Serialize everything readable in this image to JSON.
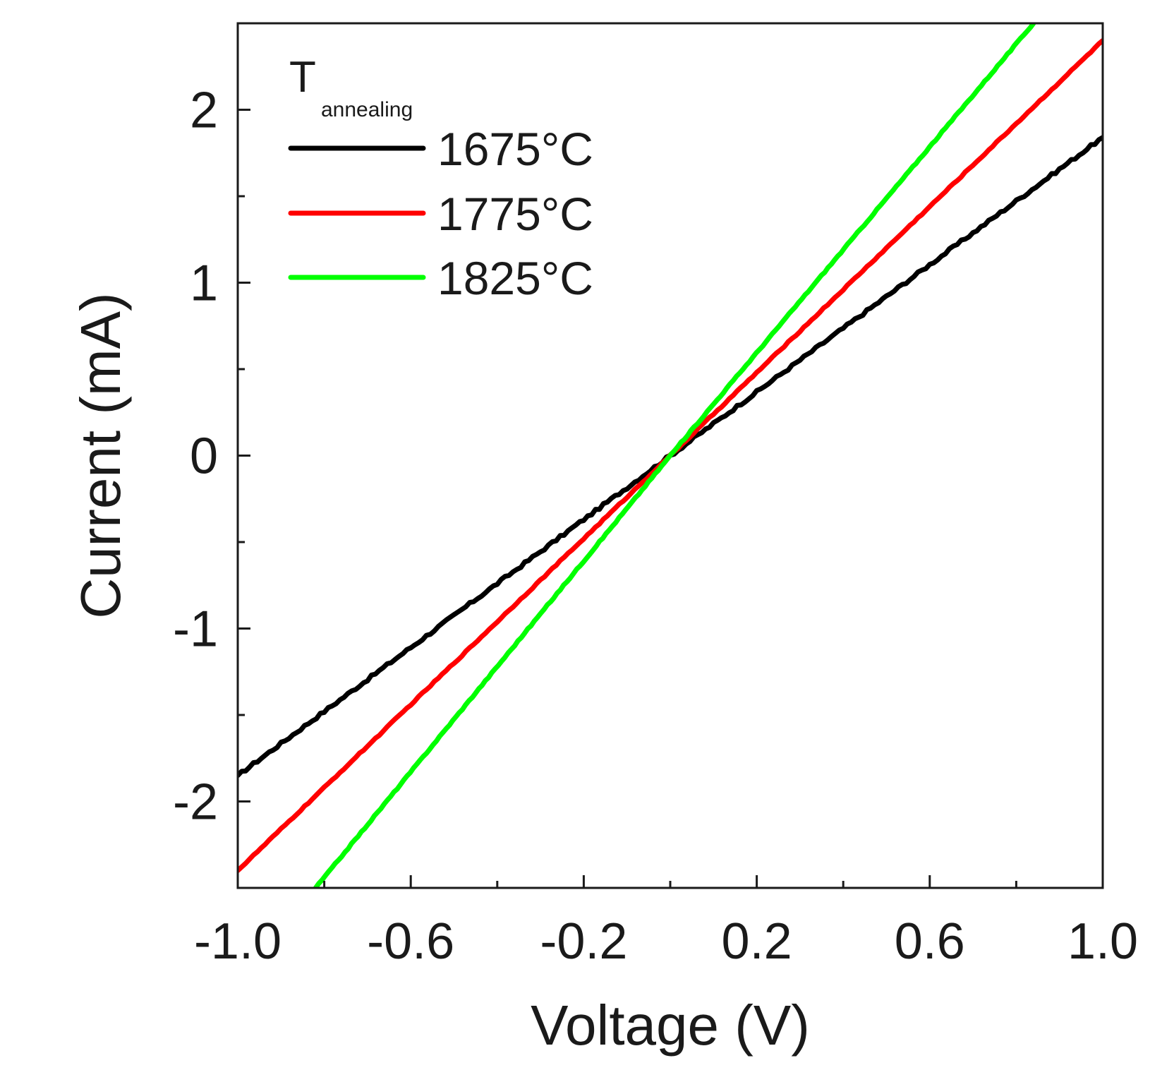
{
  "chart_data": {
    "type": "line",
    "title": "",
    "xlabel": "Voltage (V)",
    "ylabel": "Current (mA)",
    "xlim": [
      -1.0,
      1.0
    ],
    "ylim": [
      -2.5,
      2.5
    ],
    "xticks": [
      -1.0,
      -0.6,
      -0.2,
      0.2,
      0.6,
      1.0
    ],
    "xtick_labels": [
      "-1.0",
      "-0.6",
      "-0.2",
      "0.2",
      "0.6",
      "1.0"
    ],
    "xminor_ticks": [
      -0.8,
      -0.4,
      0.0,
      0.4,
      0.8
    ],
    "yticks": [
      -2,
      -1,
      0,
      1,
      2
    ],
    "ytick_labels": [
      "-2",
      "-1",
      "0",
      "1",
      "2"
    ],
    "grid": false,
    "legend": {
      "title_main": "T",
      "title_sub": "annealing",
      "placement": "top-left"
    },
    "series": [
      {
        "name": "1675°C",
        "color": "#000000",
        "x": [
          -1.0,
          0.0,
          1.0
        ],
        "y": [
          -1.85,
          0.0,
          1.84
        ]
      },
      {
        "name": "1775°C",
        "color": "#ff0000",
        "x": [
          -1.0,
          0.0,
          1.0
        ],
        "y": [
          -2.4,
          0.0,
          2.4
        ]
      },
      {
        "name": "1825°C",
        "color": "#00ff00",
        "x": [
          -0.82,
          0.0,
          0.84
        ],
        "y": [
          -2.5,
          0.0,
          2.5
        ]
      }
    ]
  }
}
